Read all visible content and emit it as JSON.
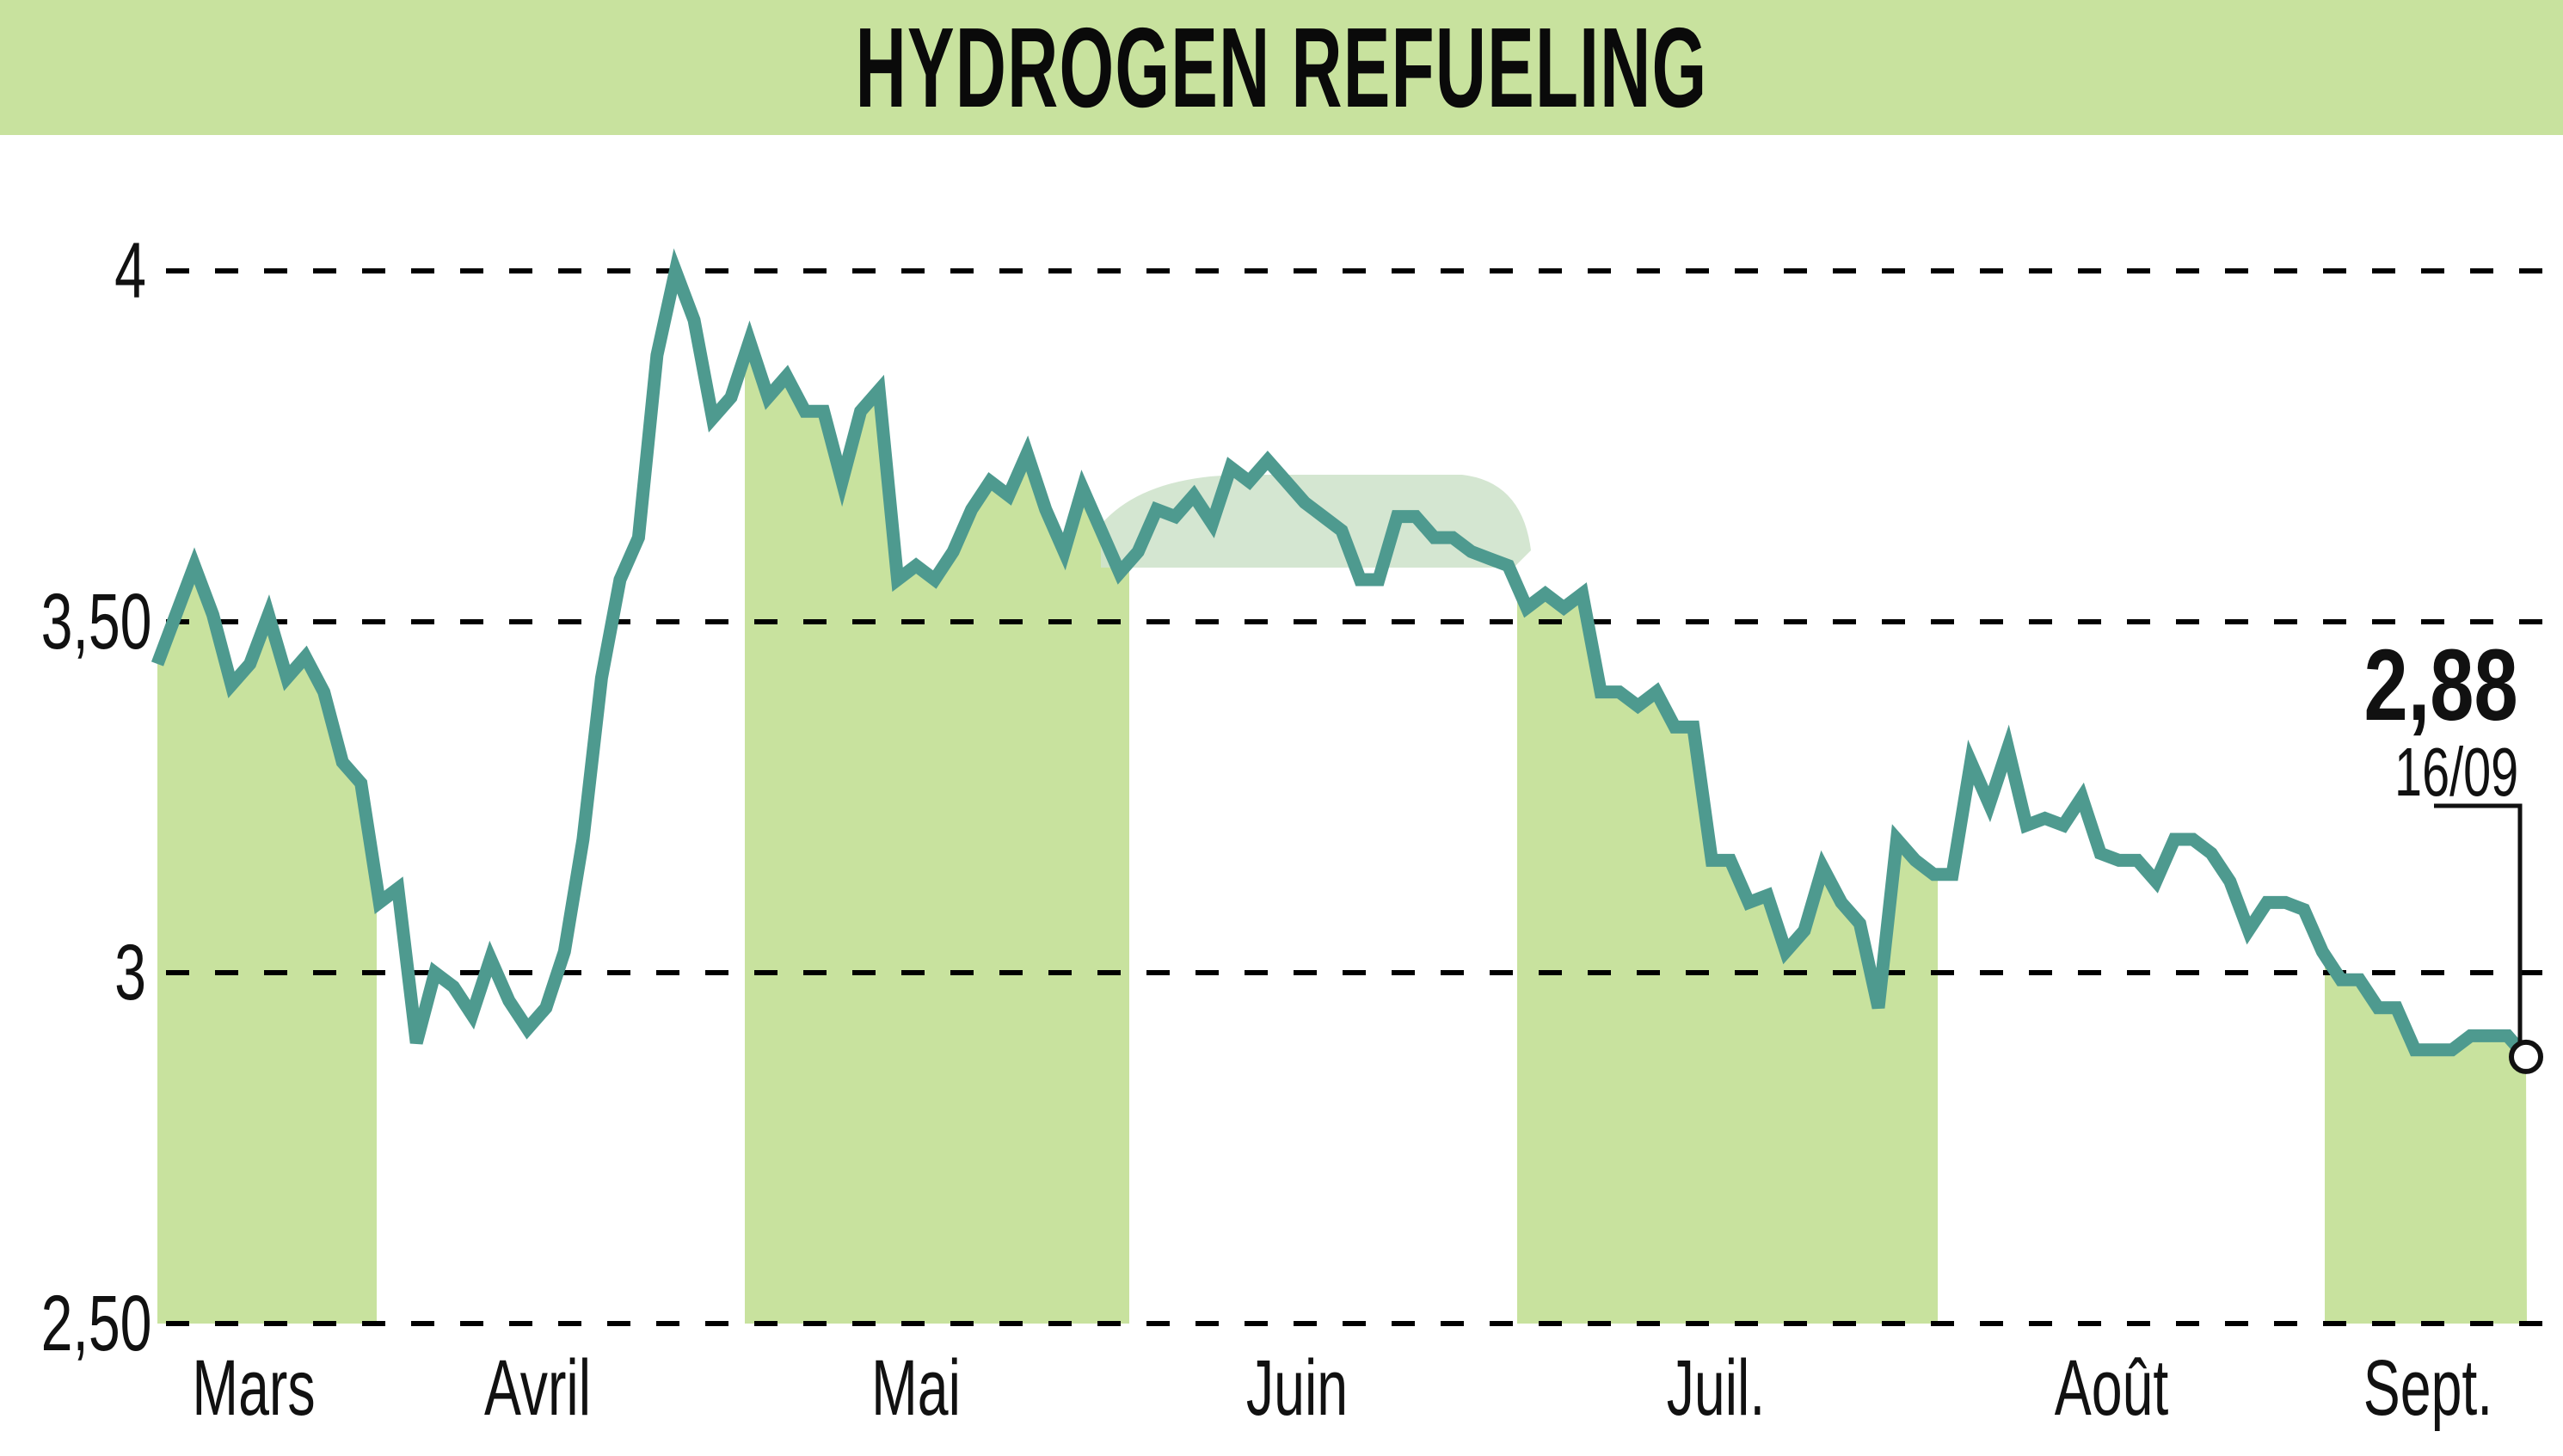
{
  "title": "HYDROGEN REFUELING",
  "colors": {
    "header_bg": "#c8e29e",
    "band_fill": "#c8e29e",
    "line": "#4e9a8f",
    "grid": "#000000",
    "watermark": "#cfe3cc"
  },
  "y_axis": {
    "ticks": [
      {
        "label": "4",
        "value": 4.0
      },
      {
        "label": "3,50",
        "value": 3.5
      },
      {
        "label": "3",
        "value": 3.0
      },
      {
        "label": "2,50",
        "value": 2.5
      }
    ]
  },
  "x_axis": {
    "months": [
      "Mars",
      "Avril",
      "Mai",
      "Juin",
      "Juil.",
      "Août",
      "Sept."
    ]
  },
  "annotation": {
    "last_value": "2,88",
    "last_date": "16/09"
  },
  "chart_data": {
    "type": "line",
    "title": "HYDROGEN REFUELING",
    "xlabel": "",
    "ylabel": "",
    "ylim": [
      2.5,
      4.0
    ],
    "grid": true,
    "y_ticks": [
      "2,50",
      "3",
      "3,50",
      "4"
    ],
    "x_tick_labels": [
      "Mars",
      "Avril",
      "Mai",
      "Juin",
      "Juil.",
      "Août",
      "Sept."
    ],
    "shaded_months": [
      "Mars",
      "Mai",
      "Juil.",
      "Sept."
    ],
    "last_point": {
      "date": "16/09",
      "value": 2.88
    },
    "series": [
      {
        "name": "HYDROGEN REFUELING",
        "values": [
          3.44,
          3.51,
          3.58,
          3.51,
          3.41,
          3.44,
          3.51,
          3.42,
          3.45,
          3.4,
          3.3,
          3.27,
          3.1,
          3.12,
          2.9,
          3.0,
          2.98,
          2.94,
          3.02,
          2.96,
          2.92,
          2.95,
          3.03,
          3.19,
          3.42,
          3.56,
          3.62,
          3.88,
          4.0,
          3.93,
          3.79,
          3.82,
          3.9,
          3.82,
          3.85,
          3.8,
          3.8,
          3.7,
          3.8,
          3.83,
          3.56,
          3.58,
          3.56,
          3.6,
          3.66,
          3.7,
          3.68,
          3.74,
          3.66,
          3.6,
          3.69,
          3.63,
          3.57,
          3.6,
          3.66,
          3.65,
          3.68,
          3.64,
          3.72,
          3.7,
          3.73,
          3.7,
          3.67,
          3.65,
          3.63,
          3.56,
          3.56,
          3.65,
          3.65,
          3.62,
          3.62,
          3.6,
          3.59,
          3.58,
          3.52,
          3.54,
          3.52,
          3.54,
          3.4,
          3.4,
          3.38,
          3.4,
          3.35,
          3.35,
          3.16,
          3.16,
          3.1,
          3.11,
          3.03,
          3.06,
          3.15,
          3.1,
          3.07,
          2.95,
          3.19,
          3.16,
          3.14,
          3.14,
          3.3,
          3.24,
          3.32,
          3.21,
          3.22,
          3.21,
          3.25,
          3.17,
          3.16,
          3.16,
          3.13,
          3.19,
          3.19,
          3.17,
          3.13,
          3.06,
          3.1,
          3.1,
          3.09,
          3.03,
          2.99,
          2.99,
          2.95,
          2.95,
          2.89,
          2.89,
          2.89,
          2.91,
          2.91,
          2.91,
          2.88
        ]
      }
    ]
  }
}
